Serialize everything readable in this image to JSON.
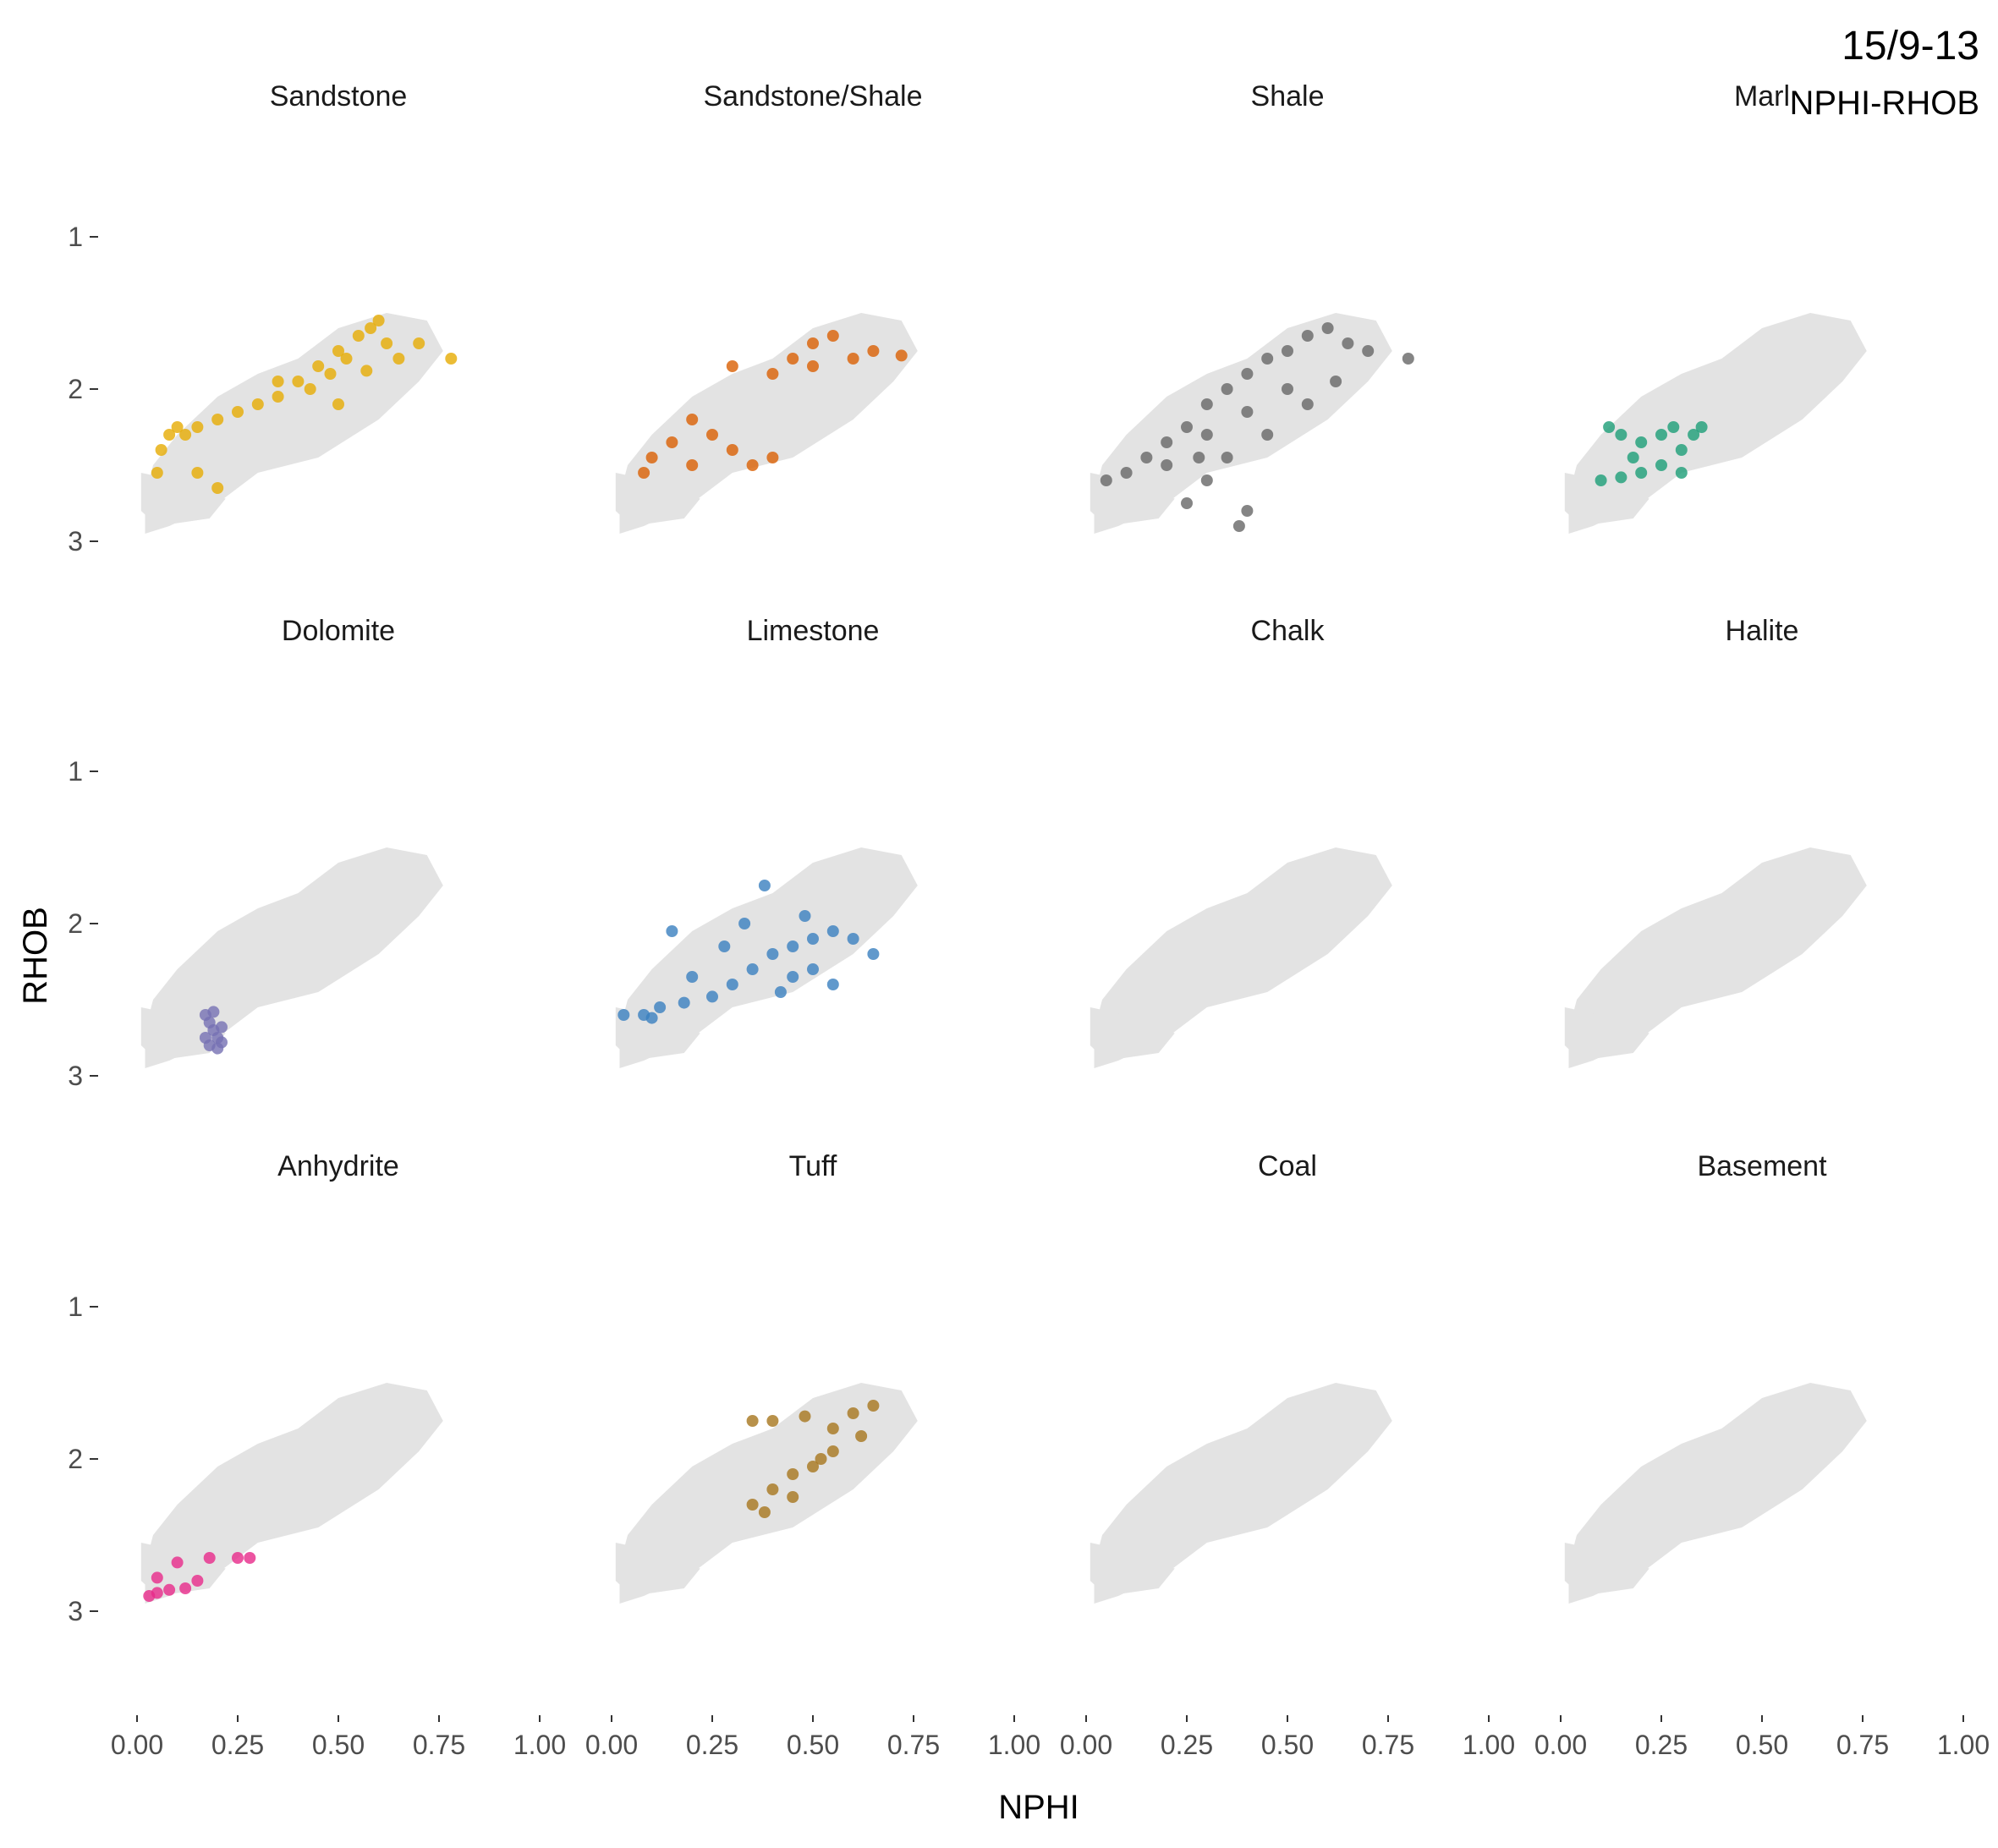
{
  "chart_data": {
    "type": "scatter",
    "title": "15/9-13",
    "subtitle": "NPHI-RHOB",
    "xlabel": "NPHI",
    "ylabel": "RHOB",
    "xlim": [
      0,
      1
    ],
    "ylim": [
      3.5,
      0.5
    ],
    "x_ticks": [
      "0.00",
      "0.25",
      "0.50",
      "0.75",
      "1.00"
    ],
    "y_ticks": [
      "1",
      "2",
      "3"
    ],
    "background_color": "#e3e3e3",
    "background_cloud": [
      [
        [
          0.02,
          2.95
        ],
        [
          0.08,
          2.9
        ],
        [
          0.2,
          2.75
        ],
        [
          0.3,
          2.55
        ],
        [
          0.45,
          2.45
        ],
        [
          0.6,
          2.2
        ],
        [
          0.7,
          1.95
        ],
        [
          0.76,
          1.75
        ],
        [
          0.72,
          1.55
        ],
        [
          0.62,
          1.5
        ],
        [
          0.5,
          1.6
        ],
        [
          0.4,
          1.8
        ],
        [
          0.3,
          1.9
        ],
        [
          0.2,
          2.05
        ],
        [
          0.1,
          2.3
        ],
        [
          0.04,
          2.5
        ],
        [
          0.02,
          2.7
        ]
      ],
      [
        [
          0.01,
          2.55
        ],
        [
          0.1,
          2.6
        ],
        [
          0.22,
          2.72
        ],
        [
          0.18,
          2.85
        ],
        [
          0.05,
          2.9
        ],
        [
          0.01,
          2.8
        ]
      ]
    ],
    "series": [
      {
        "name": "Sandstone",
        "color": "#e6ab02",
        "points": [
          [
            0.55,
            1.65
          ],
          [
            0.58,
            1.6
          ],
          [
            0.6,
            1.55
          ],
          [
            0.62,
            1.7
          ],
          [
            0.5,
            1.75
          ],
          [
            0.45,
            1.85
          ],
          [
            0.4,
            1.95
          ],
          [
            0.35,
            2.05
          ],
          [
            0.3,
            2.1
          ],
          [
            0.25,
            2.15
          ],
          [
            0.2,
            2.2
          ],
          [
            0.15,
            2.25
          ],
          [
            0.12,
            2.3
          ],
          [
            0.1,
            2.25
          ],
          [
            0.08,
            2.3
          ],
          [
            0.06,
            2.4
          ],
          [
            0.05,
            2.55
          ],
          [
            0.15,
            2.55
          ],
          [
            0.2,
            2.65
          ],
          [
            0.48,
            1.9
          ],
          [
            0.52,
            1.8
          ],
          [
            0.65,
            1.8
          ],
          [
            0.7,
            1.7
          ],
          [
            0.78,
            1.8
          ],
          [
            0.43,
            2.0
          ],
          [
            0.57,
            1.88
          ],
          [
            0.35,
            1.95
          ],
          [
            0.5,
            2.1
          ]
        ]
      },
      {
        "name": "Sandstone/Shale",
        "color": "#d95f02",
        "points": [
          [
            0.45,
            1.8
          ],
          [
            0.5,
            1.7
          ],
          [
            0.55,
            1.65
          ],
          [
            0.6,
            1.8
          ],
          [
            0.65,
            1.75
          ],
          [
            0.72,
            1.78
          ],
          [
            0.4,
            1.9
          ],
          [
            0.3,
            1.85
          ],
          [
            0.2,
            2.2
          ],
          [
            0.15,
            2.35
          ],
          [
            0.1,
            2.45
          ],
          [
            0.08,
            2.55
          ],
          [
            0.2,
            2.5
          ],
          [
            0.3,
            2.4
          ],
          [
            0.4,
            2.45
          ],
          [
            0.25,
            2.3
          ],
          [
            0.35,
            2.5
          ],
          [
            0.5,
            1.85
          ]
        ]
      },
      {
        "name": "Shale",
        "color": "#666666",
        "points": [
          [
            0.05,
            2.6
          ],
          [
            0.1,
            2.55
          ],
          [
            0.15,
            2.45
          ],
          [
            0.2,
            2.35
          ],
          [
            0.25,
            2.25
          ],
          [
            0.3,
            2.1
          ],
          [
            0.35,
            2.0
          ],
          [
            0.4,
            1.9
          ],
          [
            0.45,
            1.8
          ],
          [
            0.5,
            1.75
          ],
          [
            0.55,
            1.65
          ],
          [
            0.6,
            1.6
          ],
          [
            0.65,
            1.7
          ],
          [
            0.7,
            1.75
          ],
          [
            0.8,
            1.8
          ],
          [
            0.62,
            1.95
          ],
          [
            0.55,
            2.1
          ],
          [
            0.45,
            2.3
          ],
          [
            0.35,
            2.45
          ],
          [
            0.3,
            2.6
          ],
          [
            0.25,
            2.75
          ],
          [
            0.4,
            2.8
          ],
          [
            0.38,
            2.9
          ],
          [
            0.2,
            2.5
          ],
          [
            0.3,
            2.3
          ],
          [
            0.4,
            2.15
          ],
          [
            0.5,
            2.0
          ],
          [
            0.28,
            2.45
          ]
        ]
      },
      {
        "name": "Marl",
        "color": "#1b9e77",
        "points": [
          [
            0.1,
            2.6
          ],
          [
            0.15,
            2.58
          ],
          [
            0.2,
            2.55
          ],
          [
            0.25,
            2.5
          ],
          [
            0.3,
            2.4
          ],
          [
            0.33,
            2.3
          ],
          [
            0.35,
            2.25
          ],
          [
            0.25,
            2.3
          ],
          [
            0.2,
            2.35
          ],
          [
            0.15,
            2.3
          ],
          [
            0.12,
            2.25
          ],
          [
            0.18,
            2.45
          ],
          [
            0.28,
            2.25
          ],
          [
            0.3,
            2.55
          ]
        ]
      },
      {
        "name": "Dolomite",
        "color": "#7570b3",
        "points": [
          [
            0.17,
            2.6
          ],
          [
            0.18,
            2.65
          ],
          [
            0.19,
            2.7
          ],
          [
            0.2,
            2.75
          ],
          [
            0.18,
            2.8
          ],
          [
            0.2,
            2.82
          ],
          [
            0.21,
            2.68
          ],
          [
            0.17,
            2.75
          ],
          [
            0.19,
            2.58
          ],
          [
            0.21,
            2.78
          ]
        ]
      },
      {
        "name": "Limestone",
        "color": "#3a7fbf",
        "points": [
          [
            0.03,
            2.6
          ],
          [
            0.08,
            2.6
          ],
          [
            0.12,
            2.55
          ],
          [
            0.18,
            2.52
          ],
          [
            0.25,
            2.48
          ],
          [
            0.3,
            2.4
          ],
          [
            0.35,
            2.3
          ],
          [
            0.4,
            2.2
          ],
          [
            0.45,
            2.15
          ],
          [
            0.5,
            2.1
          ],
          [
            0.55,
            2.05
          ],
          [
            0.6,
            2.1
          ],
          [
            0.65,
            2.2
          ],
          [
            0.5,
            2.3
          ],
          [
            0.45,
            2.35
          ],
          [
            0.55,
            2.4
          ],
          [
            0.38,
            1.75
          ],
          [
            0.28,
            2.15
          ],
          [
            0.2,
            2.35
          ],
          [
            0.15,
            2.05
          ],
          [
            0.33,
            2.0
          ],
          [
            0.48,
            1.95
          ],
          [
            0.42,
            2.45
          ],
          [
            0.1,
            2.62
          ]
        ]
      },
      {
        "name": "Chalk",
        "color": "#66a61e",
        "points": []
      },
      {
        "name": "Halite",
        "color": "#a6761d",
        "points": []
      },
      {
        "name": "Anhydrite",
        "color": "#e7298a",
        "points": [
          [
            0.03,
            2.9
          ],
          [
            0.05,
            2.88
          ],
          [
            0.08,
            2.86
          ],
          [
            0.12,
            2.85
          ],
          [
            0.15,
            2.8
          ],
          [
            0.05,
            2.78
          ],
          [
            0.1,
            2.68
          ],
          [
            0.18,
            2.65
          ],
          [
            0.25,
            2.65
          ],
          [
            0.28,
            2.65
          ]
        ]
      },
      {
        "name": "Tuff",
        "color": "#a6761d",
        "points": [
          [
            0.35,
            1.75
          ],
          [
            0.4,
            1.75
          ],
          [
            0.48,
            1.72
          ],
          [
            0.55,
            1.8
          ],
          [
            0.6,
            1.7
          ],
          [
            0.65,
            1.65
          ],
          [
            0.62,
            1.85
          ],
          [
            0.55,
            1.95
          ],
          [
            0.5,
            2.05
          ],
          [
            0.45,
            2.1
          ],
          [
            0.4,
            2.2
          ],
          [
            0.35,
            2.3
          ],
          [
            0.38,
            2.35
          ],
          [
            0.45,
            2.25
          ],
          [
            0.52,
            2.0
          ]
        ]
      },
      {
        "name": "Coal",
        "color": "#333333",
        "points": []
      },
      {
        "name": "Basement",
        "color": "#999999",
        "points": []
      }
    ]
  }
}
